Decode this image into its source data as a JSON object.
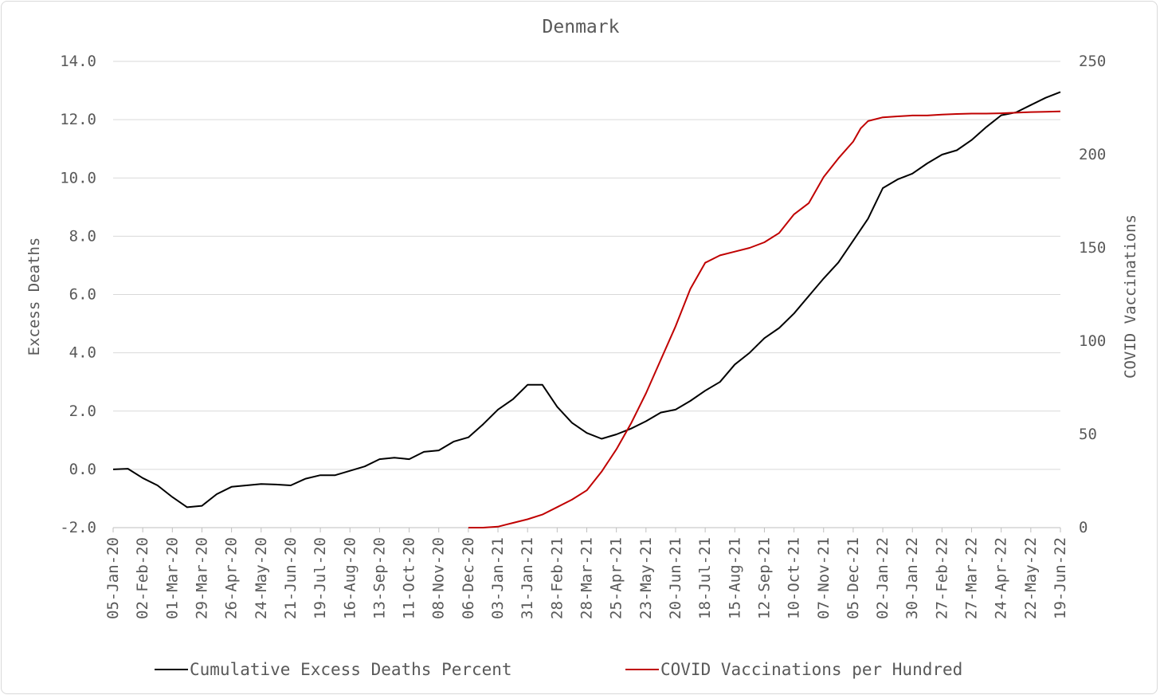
{
  "chart_data": {
    "type": "line",
    "title": "Denmark",
    "ylabel": "Excess Deaths",
    "y2label": "COVID Vaccinations",
    "ylim": [
      -2.0,
      14.0
    ],
    "y2lim": [
      0,
      250
    ],
    "y_ticks": [
      "-2.0",
      "0.0",
      "2.0",
      "4.0",
      "6.0",
      "8.0",
      "10.0",
      "12.0",
      "14.0"
    ],
    "y2_ticks": [
      "0",
      "50",
      "100",
      "150",
      "200",
      "250"
    ],
    "x_ticks": [
      "05-Jan-20",
      "02-Feb-20",
      "01-Mar-20",
      "29-Mar-20",
      "26-Apr-20",
      "24-May-20",
      "21-Jun-20",
      "19-Jul-20",
      "16-Aug-20",
      "13-Sep-20",
      "11-Oct-20",
      "08-Nov-20",
      "06-Dec-20",
      "03-Jan-21",
      "31-Jan-21",
      "28-Feb-21",
      "28-Mar-21",
      "25-Apr-21",
      "23-May-21",
      "20-Jun-21",
      "18-Jul-21",
      "15-Aug-21",
      "12-Sep-21",
      "10-Oct-21",
      "07-Nov-21",
      "05-Dec-21",
      "02-Jan-22",
      "30-Jan-22",
      "27-Feb-22",
      "27-Mar-22",
      "24-Apr-22",
      "22-May-22",
      "19-Jun-22"
    ],
    "grid": true,
    "legend_position": "bottom",
    "series": [
      {
        "name": "Cumulative Excess Deaths Percent",
        "axis": "left",
        "color": "#000000",
        "x": [
          "05-Jan-20",
          "19-Jan-20",
          "02-Feb-20",
          "16-Feb-20",
          "01-Mar-20",
          "15-Mar-20",
          "29-Mar-20",
          "12-Apr-20",
          "26-Apr-20",
          "10-May-20",
          "24-May-20",
          "07-Jun-20",
          "21-Jun-20",
          "05-Jul-20",
          "19-Jul-20",
          "02-Aug-20",
          "16-Aug-20",
          "30-Aug-20",
          "13-Sep-20",
          "27-Sep-20",
          "11-Oct-20",
          "25-Oct-20",
          "08-Nov-20",
          "22-Nov-20",
          "06-Dec-20",
          "20-Dec-20",
          "03-Jan-21",
          "17-Jan-21",
          "31-Jan-21",
          "14-Feb-21",
          "28-Feb-21",
          "14-Mar-21",
          "28-Mar-21",
          "11-Apr-21",
          "25-Apr-21",
          "09-May-21",
          "23-May-21",
          "06-Jun-21",
          "20-Jun-21",
          "04-Jul-21",
          "18-Jul-21",
          "01-Aug-21",
          "15-Aug-21",
          "29-Aug-21",
          "12-Sep-21",
          "26-Sep-21",
          "10-Oct-21",
          "24-Oct-21",
          "07-Nov-21",
          "21-Nov-21",
          "05-Dec-21",
          "19-Dec-21",
          "02-Jan-22",
          "16-Jan-22",
          "30-Jan-22",
          "13-Feb-22",
          "27-Feb-22",
          "13-Mar-22",
          "27-Mar-22",
          "10-Apr-22",
          "24-Apr-22",
          "08-May-22",
          "22-May-22",
          "05-Jun-22",
          "19-Jun-22"
        ],
        "values": [
          0.0,
          0.02,
          -0.3,
          -0.55,
          -0.95,
          -1.3,
          -1.25,
          -0.85,
          -0.6,
          -0.55,
          -0.5,
          -0.52,
          -0.55,
          -0.32,
          -0.2,
          -0.2,
          -0.05,
          0.1,
          0.35,
          0.4,
          0.35,
          0.6,
          0.65,
          0.95,
          1.1,
          1.55,
          2.05,
          2.4,
          2.9,
          2.9,
          2.15,
          1.6,
          1.25,
          1.05,
          1.2,
          1.4,
          1.65,
          1.95,
          2.05,
          2.35,
          2.7,
          3.0,
          3.6,
          4.0,
          4.5,
          4.85,
          5.35,
          5.95,
          6.55,
          7.1,
          7.85,
          8.6,
          9.65,
          9.95,
          10.15,
          10.5,
          10.8,
          10.95,
          11.3,
          11.75,
          12.15,
          12.25,
          12.5,
          12.75,
          12.95
        ]
      },
      {
        "name": "COVID Vaccinations per Hundred",
        "axis": "right",
        "color": "#c00000",
        "x": [
          "06-Dec-20",
          "20-Dec-20",
          "03-Jan-21",
          "17-Jan-21",
          "31-Jan-21",
          "14-Feb-21",
          "28-Feb-21",
          "14-Mar-21",
          "28-Mar-21",
          "11-Apr-21",
          "25-Apr-21",
          "09-May-21",
          "23-May-21",
          "06-Jun-21",
          "20-Jun-21",
          "04-Jul-21",
          "18-Jul-21",
          "01-Aug-21",
          "15-Aug-21",
          "29-Aug-21",
          "12-Sep-21",
          "26-Sep-21",
          "10-Oct-21",
          "24-Oct-21",
          "07-Nov-21",
          "21-Nov-21",
          "05-Dec-21",
          "12-Dec-21",
          "19-Dec-21",
          "02-Jan-22",
          "16-Jan-22",
          "30-Jan-22",
          "13-Feb-22",
          "27-Feb-22",
          "13-Mar-22",
          "27-Mar-22",
          "10-Apr-22",
          "24-Apr-22",
          "08-May-22",
          "22-May-22",
          "05-Jun-22",
          "19-Jun-22"
        ],
        "values": [
          0,
          0,
          0.5,
          2.5,
          4.5,
          7,
          11,
          15,
          20,
          30,
          42,
          56,
          72,
          90,
          108,
          128,
          142,
          146,
          148,
          150,
          153,
          158,
          168,
          174,
          188,
          198,
          207,
          214,
          218,
          220,
          220.5,
          221,
          221,
          221.5,
          221.8,
          222,
          222,
          222.2,
          222.5,
          222.8,
          223,
          223.2
        ]
      }
    ]
  }
}
